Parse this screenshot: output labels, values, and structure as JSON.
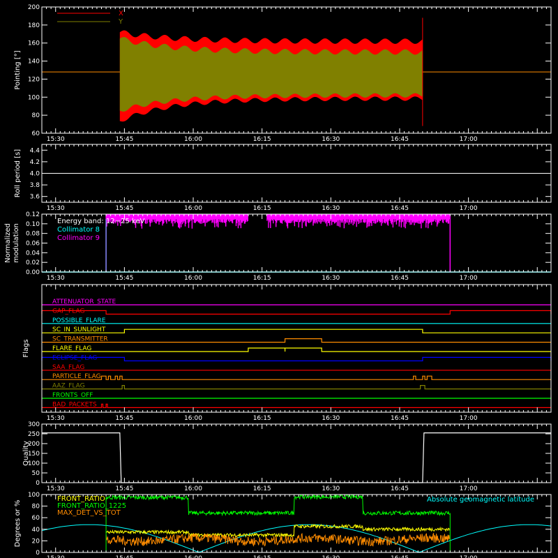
{
  "chart_data": [
    {
      "type": "line",
      "panel": "pointing",
      "ylabel": "Pointing [°]",
      "ylim": [
        60,
        200
      ],
      "yticks": [
        60,
        80,
        100,
        120,
        140,
        160,
        180,
        200
      ],
      "xlim": [
        "15:27",
        "17:18"
      ],
      "xticks": [
        "15:30",
        "15:45",
        "16:00",
        "16:15",
        "16:30",
        "16:45",
        "17:00"
      ],
      "grid": false,
      "legend": "top-left",
      "series": [
        {
          "name": "X",
          "color": "#ff0000",
          "t_start": "15:44",
          "t_end": "16:50",
          "center": 130,
          "start_range": [
            75,
            170
          ],
          "end_range": [
            100,
            160
          ]
        },
        {
          "name": "Y",
          "color": "#808000",
          "t_start": "15:44",
          "t_end": "16:50",
          "center": 128,
          "start_range": [
            85,
            165
          ],
          "end_range": [
            102,
            150
          ]
        }
      ],
      "baseline_color": "#ff8c00",
      "baseline_value": 128
    },
    {
      "type": "line",
      "panel": "roll-period",
      "ylabel": "Roll period [s]",
      "ylim": [
        3.5,
        4.5
      ],
      "yticks": [
        "3.6",
        "3.8",
        "4.0",
        "4.2",
        "4.4"
      ],
      "xticks": [
        "15:30",
        "15:45",
        "16:00",
        "16:15",
        "16:30",
        "16:45",
        "17:00"
      ],
      "series": [
        {
          "name": "",
          "color": "#ffffff",
          "value": 4.0
        }
      ]
    },
    {
      "type": "line",
      "panel": "modulation",
      "ylabel_lines": [
        "Normalized",
        "modulation"
      ],
      "ylim": [
        0,
        0.12
      ],
      "yticks": [
        "0.00",
        "0.02",
        "0.04",
        "0.06",
        "0.08",
        "0.10",
        "0.12"
      ],
      "xticks": [
        "15:30",
        "15:45",
        "16:00",
        "16:15",
        "16:30",
        "16:45",
        "17:00"
      ],
      "legend_title": "Energy band: 12−25 keV",
      "series": [
        {
          "name": "Collimator 8",
          "color": "#00ffff",
          "value": 0.0
        },
        {
          "name": "Collimator 9",
          "color": "#ff00ff",
          "t_start": "15:41",
          "t_end": "16:56",
          "gap": [
            "16:12",
            "16:16"
          ],
          "typical": 0.11,
          "low": 0.09
        }
      ]
    },
    {
      "type": "step",
      "panel": "flags",
      "ylabel": "Flags",
      "xticks": [
        "15:30",
        "15:45",
        "16:00",
        "16:15",
        "16:30",
        "16:45",
        "17:00"
      ],
      "flags": [
        {
          "name": "ATTENUATOR_STATE",
          "color": "#ff00ff",
          "on": []
        },
        {
          "name": "GAP_FLAG",
          "color": "#ff0000",
          "on": [
            [
              "15:27",
              "15:41"
            ],
            [
              "16:56",
              "17:18"
            ]
          ]
        },
        {
          "name": "POSSIBLE_FLARE",
          "color": "#00ffff",
          "on": []
        },
        {
          "name": "SC_IN_SUNLIGHT",
          "color": "#ffff00",
          "on": [
            [
              "15:45",
              "16:50"
            ]
          ]
        },
        {
          "name": "SC_TRANSMITTER",
          "color": "#ff8c00",
          "on": [
            [
              "16:20",
              "16:28"
            ]
          ]
        },
        {
          "name": "FLARE_FLAG",
          "color": "#ffff00",
          "on": [
            [
              "16:12",
              "16:20"
            ],
            [
              "16:20",
              "16:28"
            ]
          ]
        },
        {
          "name": "ECLIPSE_FLAG",
          "color": "#0000ff",
          "on": [
            [
              "15:27",
              "15:45"
            ],
            [
              "16:50",
              "17:18"
            ]
          ]
        },
        {
          "name": "SAA_FLAG",
          "color": "#ff0000",
          "on": []
        },
        {
          "name": "PARTICLE_FLAG",
          "color": "#ff8c00",
          "on": [
            [
              "15:40",
              "15:41"
            ],
            [
              "15:41.5",
              "15:42"
            ],
            [
              "15:43",
              "15:43.5"
            ],
            [
              "15:44",
              "15:44.5"
            ],
            [
              "16:48",
              "16:48.5"
            ],
            [
              "16:50",
              "16:50.5"
            ],
            [
              "16:51",
              "16:52"
            ]
          ]
        },
        {
          "name": "AAZ_FLAG",
          "color": "#808000",
          "on": [
            [
              "15:44.5",
              "15:45"
            ],
            [
              "16:49.5",
              "16:50.5"
            ]
          ]
        },
        {
          "name": "FRONTS_OFF",
          "color": "#00ff00",
          "on": []
        },
        {
          "name": "BAD_PACKETS",
          "color": "#ff0000",
          "on": [
            [
              "15:40",
              "15:40.3"
            ],
            [
              "15:41",
              "15:41.3"
            ]
          ]
        }
      ]
    },
    {
      "type": "line",
      "panel": "quality",
      "ylabel": "Quality",
      "ylim": [
        0,
        300
      ],
      "yticks": [
        "0",
        "50",
        "100",
        "150",
        "200",
        "250",
        "300"
      ],
      "xticks": [
        "15:30",
        "15:45",
        "16:00",
        "16:15",
        "16:30",
        "16:45",
        "17:00"
      ],
      "series": [
        {
          "name": "",
          "color": "#ffffff",
          "high": 255,
          "low": 0,
          "on_before": "15:44",
          "on_after": "16:50"
        }
      ]
    },
    {
      "type": "line",
      "panel": "ratios",
      "ylabel": "Degrees or %",
      "ylim": [
        0,
        100
      ],
      "yticks": [
        "0",
        "20",
        "40",
        "60",
        "80",
        "100"
      ],
      "xticks": [
        "15:30",
        "15:45",
        "16:00",
        "16:15",
        "16:30",
        "16:45",
        "17:00"
      ],
      "legend": "top-left",
      "right_label": "Absolute geomagnetic latitude",
      "series": [
        {
          "name": "FRONT_RATIO",
          "color": "#ffff00"
        },
        {
          "name": "FRONT_RATIO_1225",
          "color": "#00ff00"
        },
        {
          "name": "MAX_DET_VS_TOT",
          "color": "#ff8c00"
        },
        {
          "name": "Absolute geomagnetic latitude",
          "color": "#00ffff"
        }
      ]
    }
  ]
}
